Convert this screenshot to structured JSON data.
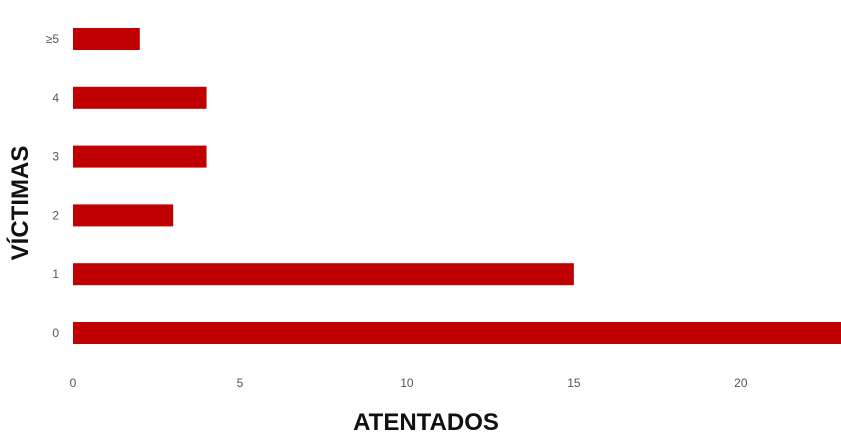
{
  "chart_data": {
    "type": "bar",
    "orientation": "horizontal",
    "categories": [
      "0",
      "1",
      "2",
      "3",
      "4",
      "≥5"
    ],
    "values": [
      23,
      15,
      3,
      4,
      4,
      2
    ],
    "xlabel": "ATENTADOS",
    "ylabel": "VÍCTIMAS",
    "xlim": [
      0,
      23
    ],
    "xticks": [
      0,
      5,
      10,
      15,
      20
    ],
    "grid": false,
    "bar_color": "#c00000"
  }
}
